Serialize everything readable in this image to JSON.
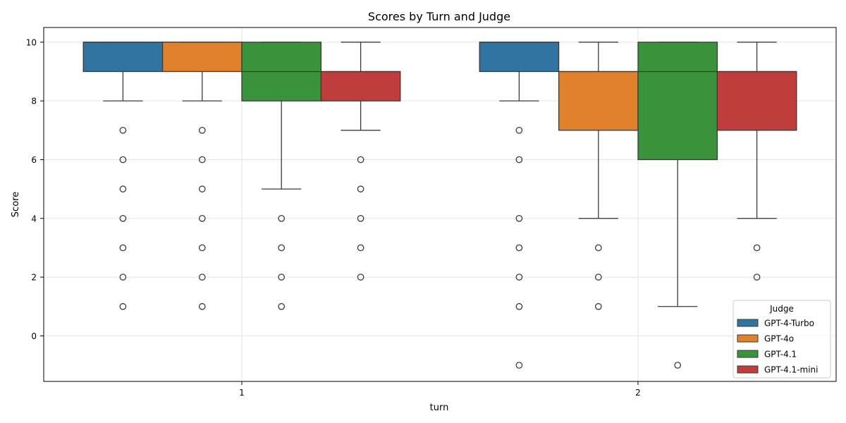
{
  "chart_data": {
    "type": "box",
    "title": "Scores by Turn and Judge",
    "xlabel": "turn",
    "ylabel": "Score",
    "categories": [
      "1",
      "2"
    ],
    "ylim": [
      -1.55,
      10.5
    ],
    "yticks": [
      0,
      2,
      4,
      6,
      8,
      10
    ],
    "grid": true,
    "legend": {
      "title": "Judge",
      "placement": "lower-right"
    },
    "series": [
      {
        "name": "GPT-4-Turbo",
        "color": "#3274a1",
        "boxes": [
          {
            "category": "1",
            "q1": 9,
            "median": 10,
            "q3": 10,
            "whisker_low": 8,
            "whisker_high": 10,
            "outliers": [
              7,
              6,
              5,
              4,
              3,
              2,
              1
            ]
          },
          {
            "category": "2",
            "q1": 9,
            "median": 10,
            "q3": 10,
            "whisker_low": 8,
            "whisker_high": 10,
            "outliers": [
              7,
              6,
              4,
              3,
              2,
              1,
              -1
            ]
          }
        ]
      },
      {
        "name": "GPT-4o",
        "color": "#e1812c",
        "boxes": [
          {
            "category": "1",
            "q1": 9,
            "median": 10,
            "q3": 10,
            "whisker_low": 8,
            "whisker_high": 10,
            "outliers": [
              7,
              6,
              5,
              4,
              3,
              2,
              1
            ]
          },
          {
            "category": "2",
            "q1": 7,
            "median": 9,
            "q3": 9,
            "whisker_low": 4,
            "whisker_high": 10,
            "outliers": [
              3,
              2,
              1
            ]
          }
        ]
      },
      {
        "name": "GPT-4.1",
        "color": "#3a923a",
        "boxes": [
          {
            "category": "1",
            "q1": 8,
            "median": 9,
            "q3": 10,
            "whisker_low": 5,
            "whisker_high": 10,
            "outliers": [
              4,
              3,
              2,
              1
            ]
          },
          {
            "category": "2",
            "q1": 6,
            "median": 9,
            "q3": 10,
            "whisker_low": 1,
            "whisker_high": 10,
            "outliers": [
              -1
            ]
          }
        ]
      },
      {
        "name": "GPT-4.1-mini",
        "color": "#c03d3e",
        "boxes": [
          {
            "category": "1",
            "q1": 8,
            "median": 9,
            "q3": 9,
            "whisker_low": 7,
            "whisker_high": 10,
            "outliers": [
              6,
              5,
              4,
              3,
              2
            ]
          },
          {
            "category": "2",
            "q1": 7,
            "median": 9,
            "q3": 9,
            "whisker_low": 4,
            "whisker_high": 10,
            "outliers": [
              3,
              2
            ]
          }
        ]
      }
    ]
  }
}
